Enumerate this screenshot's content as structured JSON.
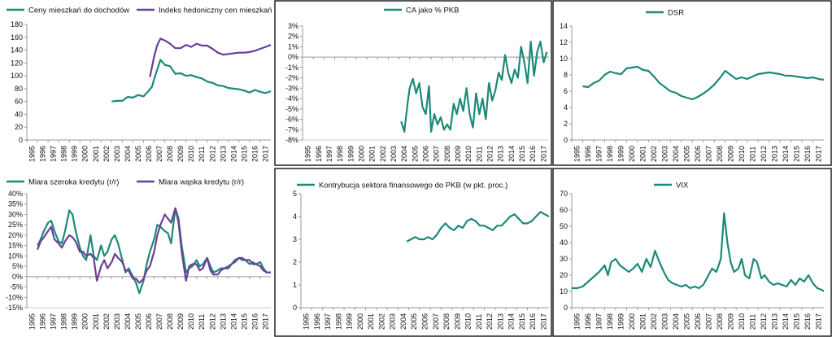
{
  "colors": {
    "teal": "#1b8a78",
    "purple": "#6b3f98",
    "axis": "#9a9a9a",
    "frame": "#222222"
  },
  "years": [
    "1995",
    "1996",
    "1997",
    "1998",
    "1999",
    "2000",
    "2001",
    "2002",
    "2003",
    "2004",
    "2005",
    "2006",
    "2007",
    "2008",
    "2009",
    "2010",
    "2011",
    "2012",
    "2013",
    "2014",
    "2015",
    "2016",
    "2017"
  ],
  "chart_data": [
    {
      "type": "line",
      "title": "",
      "xlim": [
        1995,
        2018
      ],
      "ylim": [
        0,
        180
      ],
      "yticks": [
        0,
        20,
        40,
        60,
        80,
        100,
        120,
        140,
        160,
        180
      ],
      "ytick_labels": [
        "0",
        "20",
        "40",
        "60",
        "80",
        "100",
        "120",
        "140",
        "160",
        "180"
      ],
      "legend": "top",
      "series": [
        {
          "name": "Ceny mieszkań do dochodów",
          "color": "#1b8a78",
          "x": [
            2003,
            2003.5,
            2004,
            2004.5,
            2005,
            2005.5,
            2006,
            2006.4,
            2006.8,
            2007,
            2007.3,
            2007.6,
            2008,
            2008.5,
            2009,
            2009.5,
            2010,
            2010.5,
            2011,
            2011.5,
            2012,
            2012.5,
            2013,
            2013.5,
            2014,
            2014.5,
            2015,
            2015.5,
            2016,
            2016.5,
            2017,
            2017.5,
            2018
          ],
          "y": [
            60,
            61,
            61,
            67,
            66,
            70,
            68,
            75,
            83,
            95,
            110,
            125,
            117,
            115,
            103,
            104,
            100,
            101,
            98,
            96,
            91,
            89,
            85,
            84,
            81,
            80,
            79,
            77,
            74,
            78,
            75,
            73,
            76
          ]
        },
        {
          "name": "Indeks hedoniczny cen mieszkań",
          "color": "#6b3f98",
          "x": [
            2006.6,
            2007,
            2007.3,
            2007.6,
            2008,
            2008.5,
            2009,
            2009.5,
            2010,
            2010.5,
            2011,
            2011.5,
            2012,
            2012.5,
            2013,
            2013.5,
            2014,
            2014.5,
            2015,
            2015.5,
            2016,
            2016.5,
            2017,
            2017.5,
            2018
          ],
          "y": [
            98,
            130,
            148,
            158,
            155,
            150,
            143,
            143,
            148,
            145,
            150,
            147,
            147,
            142,
            136,
            133,
            134,
            135,
            136,
            136,
            137,
            139,
            142,
            145,
            148
          ]
        }
      ]
    },
    {
      "type": "line",
      "title": "",
      "xlim": [
        1995,
        2018
      ],
      "ylim": [
        -8,
        3
      ],
      "yticks": [
        -8,
        -7,
        -6,
        -5,
        -4,
        -3,
        -2,
        -1,
        0,
        1,
        2,
        3
      ],
      "ytick_labels": [
        "-8%",
        "-7%",
        "-6%",
        "-5%",
        "-4%",
        "-3%",
        "-2%",
        "-1%",
        "0%",
        "1%",
        "2%",
        "3%"
      ],
      "legend": "top",
      "series": [
        {
          "name": "CA jako % PKB",
          "color": "#1b8a78",
          "x": [
            2004.2,
            2004.5,
            2004.8,
            2005,
            2005.3,
            2005.6,
            2005.9,
            2006.2,
            2006.5,
            2006.8,
            2007,
            2007.3,
            2007.6,
            2007.9,
            2008.2,
            2008.5,
            2008.8,
            2009.1,
            2009.4,
            2009.7,
            2010,
            2010.3,
            2010.6,
            2010.9,
            2011.2,
            2011.5,
            2011.8,
            2012.1,
            2012.4,
            2012.7,
            2013,
            2013.3,
            2013.6,
            2013.9,
            2014.2,
            2014.5,
            2014.8,
            2015.1,
            2015.4,
            2015.7,
            2016,
            2016.3,
            2016.6,
            2016.9,
            2017.2,
            2017.5,
            2017.8
          ],
          "y": [
            -6.2,
            -7.2,
            -4.5,
            -3,
            -2.1,
            -3.5,
            -2.5,
            -4.8,
            -5.5,
            -2.8,
            -7.2,
            -5.5,
            -6.5,
            -5.8,
            -7.0,
            -6.5,
            -7.0,
            -4.5,
            -5.5,
            -4.0,
            -5.2,
            -3.0,
            -5.5,
            -6.8,
            -3.5,
            -5.5,
            -4.0,
            -6.0,
            -2.5,
            -4.2,
            -3.2,
            -1.5,
            -2.2,
            0.2,
            -1.5,
            -2.5,
            -1.2,
            -2.0,
            1.0,
            -0.5,
            -2.5,
            1.5,
            -1.8,
            0.5,
            1.5,
            -0.5,
            0.5
          ]
        }
      ]
    },
    {
      "type": "line",
      "title": "",
      "xlim": [
        1995,
        2018
      ],
      "ylim": [
        0,
        14
      ],
      "yticks": [
        0,
        2,
        4,
        6,
        8,
        10,
        12,
        14
      ],
      "ytick_labels": [
        "0",
        "2",
        "4",
        "6",
        "8",
        "10",
        "12",
        "14"
      ],
      "legend": "top",
      "series": [
        {
          "name": "DSR",
          "color": "#1b8a78",
          "x": [
            1996,
            1996.5,
            1997,
            1997.5,
            1998,
            1998.5,
            1999,
            1999.5,
            2000,
            2000.5,
            2001,
            2001.5,
            2002,
            2002.5,
            2003,
            2003.5,
            2004,
            2004.5,
            2005,
            2005.5,
            2006,
            2006.5,
            2007,
            2007.5,
            2008,
            2008.5,
            2009,
            2009.5,
            2010,
            2010.5,
            2011,
            2011.5,
            2012,
            2012.5,
            2013,
            2013.5,
            2014,
            2014.5,
            2015,
            2015.5,
            2016,
            2016.5,
            2017,
            2017.5,
            2018
          ],
          "y": [
            6.6,
            6.5,
            7.0,
            7.3,
            8.0,
            8.4,
            8.2,
            8.1,
            8.8,
            8.9,
            9.0,
            8.6,
            8.5,
            7.8,
            7.0,
            6.5,
            6.0,
            5.8,
            5.4,
            5.2,
            5.0,
            5.3,
            5.7,
            6.2,
            6.8,
            7.6,
            8.5,
            8.0,
            7.5,
            7.7,
            7.5,
            7.8,
            8.1,
            8.2,
            8.3,
            8.2,
            8.1,
            7.9,
            7.9,
            7.8,
            7.7,
            7.6,
            7.7,
            7.5,
            7.4
          ]
        }
      ]
    },
    {
      "type": "line",
      "title": "",
      "xlim": [
        1995,
        2018
      ],
      "ylim": [
        -15,
        40
      ],
      "yticks": [
        -15,
        -10,
        -5,
        0,
        5,
        10,
        15,
        20,
        25,
        30,
        35,
        40
      ],
      "ytick_labels": [
        "-15%",
        "-10%",
        "-5%",
        "0%",
        "5%",
        "10%",
        "15%",
        "20%",
        "25%",
        "30%",
        "35%",
        "40%"
      ],
      "legend": "top",
      "series": [
        {
          "name": "Miara szeroka kredytu (r/r)",
          "color": "#1b8a78",
          "x": [
            1996,
            1996.3,
            1996.6,
            1997,
            1997.3,
            1997.6,
            1998,
            1998.3,
            1998.6,
            1999,
            1999.3,
            1999.6,
            2000,
            2000.3,
            2000.6,
            2001,
            2001.3,
            2001.6,
            2002,
            2002.3,
            2002.6,
            2003,
            2003.3,
            2003.6,
            2004,
            2004.3,
            2004.6,
            2005,
            2005.3,
            2005.6,
            2006,
            2006.3,
            2006.6,
            2007,
            2007.3,
            2007.6,
            2008,
            2008.3,
            2008.6,
            2009,
            2009.3,
            2009.6,
            2010,
            2010.3,
            2010.6,
            2011,
            2011.3,
            2011.6,
            2012,
            2012.3,
            2012.6,
            2013,
            2013.3,
            2013.6,
            2014,
            2014.3,
            2014.6,
            2015,
            2015.3,
            2015.6,
            2016,
            2016.3,
            2016.6,
            2017,
            2017.3,
            2017.6,
            2018
          ],
          "y": [
            15,
            18,
            22,
            26,
            27,
            22,
            17,
            16,
            22,
            32,
            30,
            22,
            14,
            10,
            8,
            20,
            10,
            8,
            15,
            10,
            12,
            18,
            20,
            16,
            8,
            2,
            4,
            0,
            -3,
            -8,
            -2,
            6,
            12,
            18,
            25,
            24,
            22,
            21,
            16,
            33,
            28,
            15,
            2,
            4,
            5,
            8,
            5,
            6,
            9,
            5,
            2,
            3,
            4,
            4,
            5,
            6,
            8,
            9,
            8,
            8,
            6,
            7,
            6,
            7,
            4,
            2,
            2
          ]
        },
        {
          "name": "Miara wąska kredytu (r/r)",
          "color": "#6b3f98",
          "x": [
            1996,
            1996.3,
            1996.6,
            1997,
            1997.3,
            1997.6,
            1998,
            1998.3,
            1998.6,
            1999,
            1999.3,
            1999.6,
            2000,
            2000.3,
            2000.6,
            2001,
            2001.3,
            2001.6,
            2002,
            2002.3,
            2002.6,
            2003,
            2003.3,
            2003.6,
            2004,
            2004.3,
            2004.6,
            2005,
            2005.3,
            2005.6,
            2006,
            2006.3,
            2006.6,
            2007,
            2007.3,
            2007.6,
            2008,
            2008.3,
            2008.6,
            2009,
            2009.3,
            2009.6,
            2010,
            2010.3,
            2010.6,
            2011,
            2011.3,
            2011.6,
            2012,
            2012.3,
            2012.6,
            2013,
            2013.3,
            2013.6,
            2014,
            2014.3,
            2014.6,
            2015,
            2015.3,
            2015.6,
            2016,
            2016.3,
            2016.6,
            2017,
            2017.3,
            2017.6,
            2018
          ],
          "y": [
            13,
            17,
            19,
            22,
            24,
            18,
            16,
            14,
            17,
            20,
            19,
            17,
            12,
            12,
            10,
            11,
            9,
            -2,
            5,
            8,
            4,
            7,
            11,
            9,
            7,
            3,
            3,
            -1,
            -1,
            -3,
            -1,
            3,
            5,
            12,
            20,
            25,
            30,
            28,
            26,
            33,
            26,
            12,
            -2,
            5,
            6,
            6,
            3,
            4,
            9,
            3,
            1,
            1,
            3,
            4,
            4,
            6,
            7,
            9,
            9,
            8,
            8,
            6,
            6,
            5,
            3,
            2,
            2
          ]
        }
      ]
    },
    {
      "type": "line",
      "title": "",
      "xlim": [
        1995,
        2018
      ],
      "ylim": [
        0,
        5
      ],
      "yticks": [
        0,
        1,
        2,
        3,
        4,
        5
      ],
      "ytick_labels": [
        "0",
        "1",
        "2",
        "3",
        "4",
        "5"
      ],
      "legend": "top",
      "series": [
        {
          "name": "Kontrybucja sektora finansowego do PKB (w pkt. proc.)",
          "color": "#1b8a78",
          "x": [
            2004.8,
            2005.2,
            2005.6,
            2006,
            2006.4,
            2006.8,
            2007.2,
            2007.6,
            2008,
            2008.4,
            2008.8,
            2009.2,
            2009.6,
            2010,
            2010.4,
            2010.8,
            2011.2,
            2011.6,
            2012,
            2012.4,
            2012.8,
            2013.2,
            2013.6,
            2014,
            2014.4,
            2014.8,
            2015.2,
            2015.6,
            2016,
            2016.4,
            2016.8,
            2017.2,
            2017.6,
            2018
          ],
          "y": [
            2.9,
            3.0,
            3.1,
            3.0,
            3.0,
            3.1,
            3.0,
            3.2,
            3.5,
            3.7,
            3.5,
            3.4,
            3.6,
            3.5,
            3.8,
            3.9,
            3.8,
            3.6,
            3.6,
            3.5,
            3.4,
            3.6,
            3.6,
            3.8,
            4.0,
            4.1,
            3.9,
            3.7,
            3.7,
            3.8,
            4.0,
            4.2,
            4.1,
            4.0
          ]
        }
      ]
    },
    {
      "type": "line",
      "title": "",
      "xlim": [
        1995,
        2018
      ],
      "ylim": [
        0,
        70
      ],
      "yticks": [
        0,
        10,
        20,
        30,
        40,
        50,
        60,
        70
      ],
      "ytick_labels": [
        "0",
        "10",
        "20",
        "30",
        "40",
        "50",
        "60",
        "70"
      ],
      "legend": "top",
      "series": [
        {
          "name": "VIX",
          "color": "#1b8a78",
          "x": [
            1995,
            1995.5,
            1996,
            1996.5,
            1997,
            1997.5,
            1998,
            1998.3,
            1998.6,
            1999,
            1999.4,
            1999.8,
            2000.2,
            2000.6,
            2001,
            2001.4,
            2001.8,
            2002.2,
            2002.6,
            2003,
            2003.4,
            2003.8,
            2004.2,
            2004.6,
            2005,
            2005.4,
            2005.8,
            2006.2,
            2006.6,
            2007,
            2007.4,
            2007.8,
            2008.2,
            2008.6,
            2008.9,
            2009.2,
            2009.5,
            2009.8,
            2010.2,
            2010.5,
            2010.8,
            2011.2,
            2011.6,
            2011.9,
            2012.3,
            2012.6,
            2013,
            2013.4,
            2013.8,
            2014.2,
            2014.6,
            2015,
            2015.4,
            2015.8,
            2016.2,
            2016.6,
            2017,
            2017.4,
            2017.8,
            2018
          ],
          "y": [
            12,
            12,
            13,
            16,
            19,
            22,
            26,
            20,
            28,
            30,
            26,
            24,
            22,
            24,
            27,
            22,
            30,
            25,
            35,
            28,
            22,
            17,
            15,
            14,
            13,
            14,
            12,
            13,
            12,
            14,
            19,
            24,
            22,
            30,
            58,
            40,
            28,
            22,
            24,
            30,
            20,
            18,
            30,
            28,
            18,
            20,
            16,
            14,
            15,
            14,
            13,
            17,
            14,
            18,
            16,
            20,
            15,
            12,
            11,
            10
          ]
        }
      ]
    }
  ]
}
